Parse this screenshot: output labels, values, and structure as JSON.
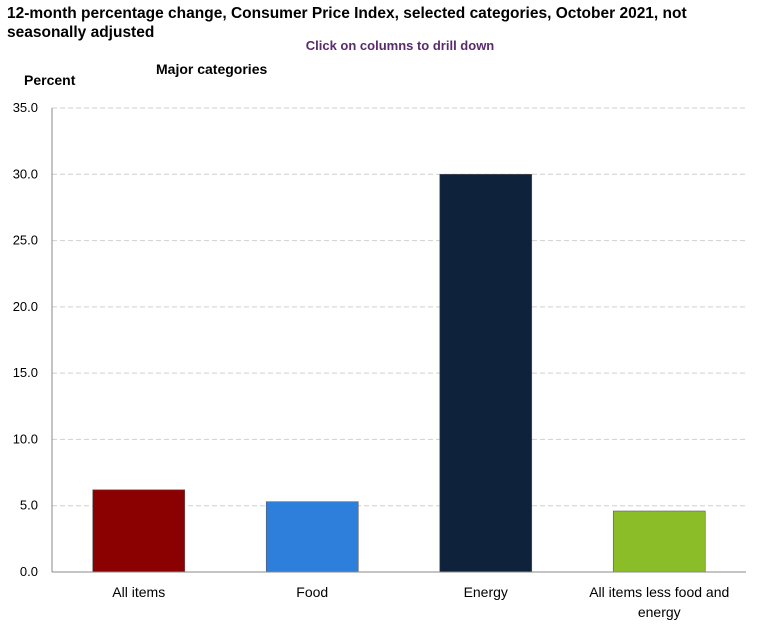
{
  "chart_data": {
    "type": "bar",
    "title": "12-month percentage change, Consumer Price Index, selected categories, October 2021, not seasonally adjusted",
    "instruction": "Click on columns to drill down",
    "subtitle": "Major categories",
    "ylabel": "Percent",
    "xlabel": "",
    "ylim": [
      0,
      35
    ],
    "yticks": [
      "0.0",
      "5.0",
      "10.0",
      "15.0",
      "20.0",
      "25.0",
      "30.0",
      "35.0"
    ],
    "grid": true,
    "categories": [
      "All items",
      "Food",
      "Energy",
      "All items less food and energy"
    ],
    "values": [
      6.2,
      5.3,
      30.0,
      4.6
    ],
    "colors": [
      "#8b0000",
      "#2e7fdb",
      "#0e233b",
      "#8bbd28"
    ]
  }
}
